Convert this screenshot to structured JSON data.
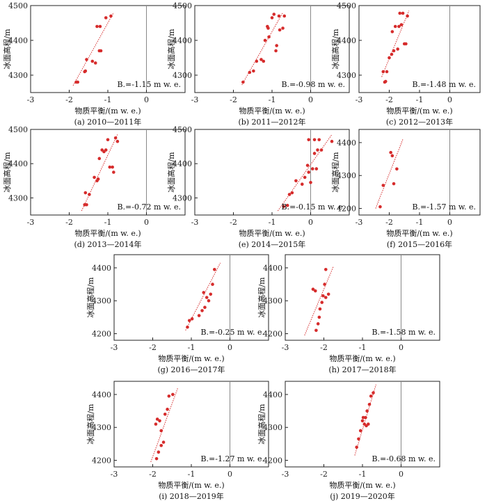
{
  "chart_data": [
    {
      "type": "scatter",
      "caption": "(a) 2010—2011年",
      "annotation": "B.=-1.15 m w. e.",
      "xlabel": "物质平衡/(m w. e.)",
      "ylabel": "冰面高程/m",
      "xlim": [
        -3,
        1
      ],
      "ylim": [
        4250,
        4500
      ],
      "xticks": [
        -3,
        -2,
        -1,
        0
      ],
      "yticks": [
        4300,
        4400,
        4500
      ],
      "points": [
        [
          -1.82,
          4280
        ],
        [
          -1.78,
          4280
        ],
        [
          -1.6,
          4310
        ],
        [
          -1.58,
          4312
        ],
        [
          -1.55,
          4345
        ],
        [
          -1.4,
          4340
        ],
        [
          -1.32,
          4335
        ],
        [
          -1.28,
          4440
        ],
        [
          -1.22,
          4370
        ],
        [
          -1.18,
          4370
        ],
        [
          -1.2,
          4440
        ],
        [
          -1.05,
          4465
        ],
        [
          -0.92,
          4470
        ]
      ],
      "fit": [
        [
          -1.9,
          4270
        ],
        [
          -0.85,
          4480
        ]
      ]
    },
    {
      "type": "scatter",
      "caption": "(b) 2011—2012年",
      "annotation": "B.=-0.98 m w. e.",
      "xlabel": "物质平衡/(m w. e.)",
      "ylabel": "冰面高程/m",
      "xlim": [
        -3,
        1
      ],
      "ylim": [
        4250,
        4500
      ],
      "xticks": [
        -3,
        -2,
        -1,
        0
      ],
      "yticks": [
        4300,
        4400,
        4500
      ],
      "points": [
        [
          -1.75,
          4280
        ],
        [
          -1.58,
          4308
        ],
        [
          -1.48,
          4312
        ],
        [
          -1.4,
          4340
        ],
        [
          -1.28,
          4345
        ],
        [
          -1.22,
          4340
        ],
        [
          -1.18,
          4400
        ],
        [
          -1.12,
          4440
        ],
        [
          -1.1,
          4435
        ],
        [
          -1.08,
          4410
        ],
        [
          -1.0,
          4465
        ],
        [
          -0.95,
          4475
        ],
        [
          -0.9,
          4370
        ],
        [
          -0.88,
          4385
        ],
        [
          -0.82,
          4470
        ],
        [
          -0.8,
          4430
        ],
        [
          -0.72,
          4435
        ],
        [
          -0.68,
          4470
        ]
      ],
      "fit": [
        [
          -1.78,
          4272
        ],
        [
          -0.72,
          4480
        ]
      ]
    },
    {
      "type": "scatter",
      "caption": "(c) 2012—2013年",
      "annotation": "B.=-1.48 m w. e.",
      "xlabel": "物质平衡/(m w. e.)",
      "ylabel": "冰面高程/m",
      "xlim": [
        -3,
        1
      ],
      "ylim": [
        4250,
        4500
      ],
      "xticks": [
        -3,
        -2,
        -1,
        0
      ],
      "yticks": [
        4300,
        4400,
        4500
      ],
      "points": [
        [
          -2.2,
          4310
        ],
        [
          -2.15,
          4280
        ],
        [
          -2.12,
          4282
        ],
        [
          -2.08,
          4310
        ],
        [
          -2.0,
          4350
        ],
        [
          -1.92,
          4360
        ],
        [
          -1.9,
          4425
        ],
        [
          -1.85,
          4370
        ],
        [
          -1.8,
          4440
        ],
        [
          -1.72,
          4375
        ],
        [
          -1.68,
          4440
        ],
        [
          -1.65,
          4478
        ],
        [
          -1.6,
          4445
        ],
        [
          -1.55,
          4478
        ],
        [
          -1.5,
          4390
        ],
        [
          -1.45,
          4390
        ],
        [
          -1.4,
          4470
        ]
      ],
      "fit": [
        [
          -2.25,
          4295
        ],
        [
          -1.35,
          4485
        ]
      ]
    },
    {
      "type": "scatter",
      "caption": "(d) 2013—2014年",
      "annotation": "B.=-0.72 m w. e.",
      "xlabel": "物质平衡/(m w. e.)",
      "ylabel": "冰面高程/m",
      "xlim": [
        -3,
        1
      ],
      "ylim": [
        4250,
        4500
      ],
      "xticks": [
        -3,
        -2,
        -1,
        0
      ],
      "yticks": [
        4300,
        4400,
        4500
      ],
      "points": [
        [
          -1.6,
          4280
        ],
        [
          -1.55,
          4280
        ],
        [
          -1.58,
          4315
        ],
        [
          -1.48,
          4310
        ],
        [
          -1.35,
          4360
        ],
        [
          -1.28,
          4350
        ],
        [
          -1.25,
          4355
        ],
        [
          -1.22,
          4415
        ],
        [
          -1.15,
          4440
        ],
        [
          -1.1,
          4435
        ],
        [
          -1.05,
          4440
        ],
        [
          -1.0,
          4470
        ],
        [
          -0.95,
          4390
        ],
        [
          -0.88,
          4390
        ],
        [
          -0.85,
          4375
        ],
        [
          -0.8,
          4475
        ],
        [
          -0.75,
          4465
        ]
      ],
      "fit": [
        [
          -1.68,
          4262
        ],
        [
          -0.75,
          4485
        ]
      ]
    },
    {
      "type": "scatter",
      "caption": "(e) 2014—2015年",
      "annotation": "B.=-0.15 m w. e.",
      "xlabel": "物质平衡/(m w. e.)",
      "ylabel": "冰面高程/m",
      "xlim": [
        -3,
        1
      ],
      "ylim": [
        4250,
        4500
      ],
      "xticks": [
        -3,
        -2,
        -1,
        0
      ],
      "yticks": [
        4300,
        4400,
        4500
      ],
      "points": [
        [
          -0.7,
          4275
        ],
        [
          -0.6,
          4278
        ],
        [
          -0.55,
          4310
        ],
        [
          -0.48,
          4315
        ],
        [
          -0.38,
          4350
        ],
        [
          -0.22,
          4340
        ],
        [
          -0.15,
          4360
        ],
        [
          -0.08,
          4395
        ],
        [
          -0.05,
          4375
        ],
        [
          -0.05,
          4470
        ],
        [
          0.0,
          4345
        ],
        [
          0.05,
          4385
        ],
        [
          0.1,
          4430
        ],
        [
          0.1,
          4470
        ],
        [
          0.15,
          4385
        ],
        [
          0.18,
          4440
        ],
        [
          0.22,
          4470
        ],
        [
          0.28,
          4440
        ],
        [
          0.55,
          4465
        ]
      ],
      "fit": [
        [
          -0.85,
          4262
        ],
        [
          0.55,
          4485
        ]
      ]
    },
    {
      "type": "scatter",
      "caption": "(f) 2015—2016年",
      "annotation": "B.=-1.57 m w. e.",
      "xlabel": "物质平衡/(m w. e.)",
      "ylabel": "冰面高程/m",
      "xlim": [
        -3,
        1
      ],
      "ylim": [
        4180,
        4440
      ],
      "xticks": [
        -3,
        -2,
        -1,
        0
      ],
      "yticks": [
        4200,
        4300,
        4400
      ],
      "points": [
        [
          -2.3,
          4205
        ],
        [
          -2.2,
          4270
        ],
        [
          -1.95,
          4370
        ],
        [
          -1.9,
          4360
        ],
        [
          -1.85,
          4275
        ],
        [
          -1.75,
          4320
        ]
      ],
      "fit": [
        [
          -2.45,
          4200
        ],
        [
          -1.55,
          4410
        ]
      ]
    },
    {
      "type": "scatter",
      "caption": "(g) 2016—2017年",
      "annotation": "B.=-0.25 m w. e.",
      "xlabel": "物质平衡/(m w. e.)",
      "ylabel": "冰面高程/m",
      "xlim": [
        -3,
        1
      ],
      "ylim": [
        4180,
        4440
      ],
      "xticks": [
        -3,
        -2,
        -1,
        0
      ],
      "yticks": [
        4200,
        4300,
        4400
      ],
      "points": [
        [
          -1.1,
          4220
        ],
        [
          -1.05,
          4240
        ],
        [
          -0.98,
          4245
        ],
        [
          -0.8,
          4255
        ],
        [
          -0.72,
          4270
        ],
        [
          -0.68,
          4325
        ],
        [
          -0.65,
          4280
        ],
        [
          -0.6,
          4310
        ],
        [
          -0.55,
          4300
        ],
        [
          -0.5,
          4320
        ],
        [
          -0.45,
          4350
        ],
        [
          -0.4,
          4395
        ]
      ],
      "fit": [
        [
          -1.15,
          4210
        ],
        [
          -0.25,
          4415
        ]
      ]
    },
    {
      "type": "scatter",
      "caption": "(h) 2017—2018年",
      "annotation": "B.=-1.58 m w. e.",
      "xlabel": "物质平衡/(m w. e.)",
      "ylabel": "冰面高程/m",
      "xlim": [
        -3,
        1
      ],
      "ylim": [
        4180,
        4440
      ],
      "xticks": [
        -3,
        -2,
        -1,
        0
      ],
      "yticks": [
        4200,
        4300,
        4400
      ],
      "points": [
        [
          -2.2,
          4210
        ],
        [
          -2.15,
          4230
        ],
        [
          -2.12,
          4250
        ],
        [
          -2.1,
          4275
        ],
        [
          -2.28,
          4335
        ],
        [
          -2.22,
          4330
        ],
        [
          -2.05,
          4295
        ],
        [
          -2.02,
          4315
        ],
        [
          -1.98,
          4350
        ],
        [
          -1.95,
          4310
        ],
        [
          -1.95,
          4395
        ],
        [
          -1.88,
          4320
        ]
      ],
      "fit": [
        [
          -2.5,
          4195
        ],
        [
          -1.75,
          4405
        ]
      ]
    },
    {
      "type": "scatter",
      "caption": "(i) 2018—2019年",
      "annotation": "B.=-1.27 m w. e.",
      "xlabel": "物质平衡/(m w. e.)",
      "ylabel": "冰面高程/m",
      "xlim": [
        -3,
        1
      ],
      "ylim": [
        4180,
        4440
      ],
      "xticks": [
        -3,
        -2,
        -1,
        0
      ],
      "yticks": [
        4200,
        4300,
        4400
      ],
      "points": [
        [
          -1.9,
          4205
        ],
        [
          -1.85,
          4225
        ],
        [
          -1.92,
          4310
        ],
        [
          -1.88,
          4325
        ],
        [
          -1.82,
          4320
        ],
        [
          -1.78,
          4245
        ],
        [
          -1.72,
          4255
        ],
        [
          -1.78,
          4290
        ],
        [
          -1.68,
          4340
        ],
        [
          -1.62,
          4355
        ],
        [
          -1.58,
          4395
        ],
        [
          -1.48,
          4400
        ]
      ],
      "fit": [
        [
          -2.05,
          4195
        ],
        [
          -1.35,
          4420
        ]
      ]
    },
    {
      "type": "scatter",
      "caption": "(j) 2019—2020年",
      "annotation": "B.=-0.68 m w. e.",
      "xlabel": "物质平衡/(m w. e.)",
      "ylabel": "冰面高程/m",
      "xlim": [
        -3,
        1
      ],
      "ylim": [
        4180,
        4440
      ],
      "xticks": [
        -3,
        -2,
        -1,
        0
      ],
      "yticks": [
        4200,
        4300,
        4400
      ],
      "points": [
        [
          -1.15,
          4240
        ],
        [
          -1.1,
          4265
        ],
        [
          -1.05,
          4290
        ],
        [
          -1.0,
          4320
        ],
        [
          -0.98,
          4330
        ],
        [
          -0.95,
          4310
        ],
        [
          -0.92,
          4330
        ],
        [
          -0.9,
          4305
        ],
        [
          -0.88,
          4350
        ],
        [
          -0.85,
          4310
        ],
        [
          -0.82,
          4370
        ],
        [
          -0.78,
          4395
        ],
        [
          -0.72,
          4405
        ]
      ],
      "fit": [
        [
          -1.2,
          4215
        ],
        [
          -0.65,
          4430
        ]
      ]
    }
  ],
  "colors": {
    "points": "#d62c2c",
    "fit": "#d62c2c",
    "zero_line": "#888888",
    "axis": "#222222"
  }
}
